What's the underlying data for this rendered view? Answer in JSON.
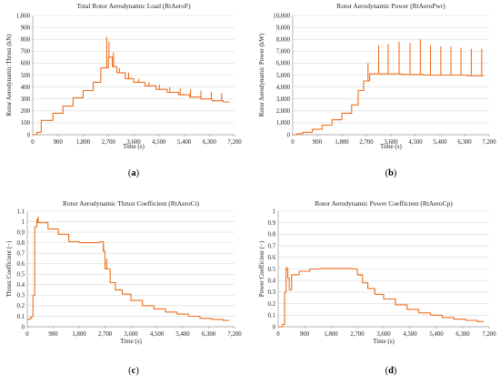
{
  "chart_data": [
    {
      "type": "line",
      "title": "Total Rotor Aerodynamic Load (RtAeroF)",
      "xlabel": "Time (s)",
      "ylabel": "Rotor Aerodynamic Thrust (kN)",
      "panel_label": "a",
      "xlim": [
        0,
        7200
      ],
      "ylim": [
        0,
        1000
      ],
      "xticks": [
        "0",
        "900",
        "1,800",
        "2,700",
        "3,600",
        "4,500",
        "5,400",
        "6,300",
        "7,200"
      ],
      "yticks": [
        "0",
        "100",
        "200",
        "300",
        "400",
        "500",
        "600",
        "700",
        "800",
        "900",
        "1,000"
      ],
      "grid": "horizontal",
      "color": "#ee6e1e",
      "steps": [
        [
          0,
          0
        ],
        [
          150,
          20
        ],
        [
          300,
          120
        ],
        [
          720,
          180
        ],
        [
          1080,
          240
        ],
        [
          1440,
          310
        ],
        [
          1800,
          370
        ],
        [
          2160,
          440
        ],
        [
          2430,
          560
        ],
        [
          2700,
          650
        ],
        [
          2840,
          570
        ],
        [
          3000,
          520
        ],
        [
          3300,
          470
        ],
        [
          3600,
          440
        ],
        [
          4000,
          410
        ],
        [
          4400,
          380
        ],
        [
          4800,
          355
        ],
        [
          5200,
          335
        ],
        [
          5600,
          315
        ],
        [
          6000,
          300
        ],
        [
          6400,
          285
        ],
        [
          6800,
          275
        ],
        [
          7000,
          270
        ]
      ],
      "spikes": [
        [
          2640,
          820
        ],
        [
          2720,
          780
        ],
        [
          2880,
          690
        ],
        [
          3090,
          560
        ],
        [
          3420,
          520
        ],
        [
          3780,
          470
        ],
        [
          4150,
          440
        ],
        [
          4520,
          420
        ],
        [
          4890,
          400
        ],
        [
          5260,
          390
        ],
        [
          5630,
          380
        ],
        [
          6000,
          370
        ],
        [
          6370,
          360
        ],
        [
          6740,
          350
        ]
      ]
    },
    {
      "type": "line",
      "title": "Rotor Aerodynamic Power (RtAeroPwr)",
      "xlabel": "Time (s)",
      "ylabel": "Rotor Aerodynamic Power (kW)",
      "panel_label": "b",
      "xlim": [
        0,
        7200
      ],
      "ylim": [
        0,
        10000
      ],
      "xticks": [
        "0",
        "900",
        "1,800",
        "2,700",
        "3,600",
        "4,500",
        "5,400",
        "6,300",
        "7,200"
      ],
      "yticks": [
        "0",
        "1,000",
        "2,000",
        "3,000",
        "4,000",
        "5,000",
        "6,000",
        "7,000",
        "8,000",
        "9,000",
        "10,000"
      ],
      "grid": "horizontal",
      "color": "#ee6e1e",
      "steps": [
        [
          0,
          0
        ],
        [
          150,
          80
        ],
        [
          360,
          200
        ],
        [
          720,
          450
        ],
        [
          1080,
          800
        ],
        [
          1440,
          1250
        ],
        [
          1800,
          1800
        ],
        [
          2160,
          2500
        ],
        [
          2400,
          3700
        ],
        [
          2600,
          4500
        ],
        [
          2820,
          5100
        ],
        [
          3200,
          5100
        ],
        [
          4000,
          5050
        ],
        [
          4800,
          5000
        ],
        [
          5600,
          5000
        ],
        [
          6400,
          4950
        ],
        [
          7000,
          4950
        ]
      ],
      "spikes": [
        [
          2760,
          6000
        ],
        [
          3150,
          7500
        ],
        [
          3500,
          7600
        ],
        [
          3900,
          7800
        ],
        [
          4300,
          7700
        ],
        [
          4680,
          8000
        ],
        [
          5050,
          7500
        ],
        [
          5430,
          7400
        ],
        [
          5800,
          7400
        ],
        [
          6170,
          7300
        ],
        [
          6550,
          7200
        ],
        [
          6930,
          7200
        ]
      ]
    },
    {
      "type": "line",
      "title": "Rotor Aerodynamic Thrust Coefficient (RtAeroCt)",
      "xlabel": "Time (s)",
      "ylabel": "Thrust Coefficient (−)",
      "panel_label": "c",
      "xlim": [
        0,
        7200
      ],
      "ylim": [
        0,
        1.1
      ],
      "xticks": [
        "0",
        "900",
        "1,800",
        "2,700",
        "3,600",
        "4,500",
        "5,400",
        "6,300",
        "7,200"
      ],
      "yticks": [
        "0",
        "0.1",
        "0.2",
        "0.3",
        "0.4",
        "0.5",
        "0.6",
        "0.7",
        "0.8",
        "0.9",
        "1",
        "1.1"
      ],
      "grid": "horizontal",
      "color": "#ee6e1e",
      "steps": [
        [
          0,
          0.07
        ],
        [
          80,
          0.08
        ],
        [
          150,
          0.1
        ],
        [
          200,
          0.3
        ],
        [
          260,
          0.95
        ],
        [
          330,
          1.02
        ],
        [
          360,
          0.99
        ],
        [
          720,
          0.93
        ],
        [
          1080,
          0.88
        ],
        [
          1440,
          0.81
        ],
        [
          1800,
          0.8
        ],
        [
          2340,
          0.8
        ],
        [
          2520,
          0.81
        ],
        [
          2640,
          0.72
        ],
        [
          2700,
          0.55
        ],
        [
          2880,
          0.42
        ],
        [
          3060,
          0.35
        ],
        [
          3300,
          0.31
        ],
        [
          3600,
          0.25
        ],
        [
          4000,
          0.2
        ],
        [
          4400,
          0.17
        ],
        [
          4800,
          0.14
        ],
        [
          5200,
          0.12
        ],
        [
          5600,
          0.1
        ],
        [
          6000,
          0.08
        ],
        [
          6400,
          0.07
        ],
        [
          6800,
          0.06
        ],
        [
          7000,
          0.055
        ]
      ],
      "spikes": [
        [
          380,
          1.05
        ],
        [
          2650,
          0.78
        ],
        [
          2760,
          0.65
        ]
      ]
    },
    {
      "type": "line",
      "title": "Rotor Aerodynamic Power Coefficient (RtAeroCp)",
      "xlabel": "Time (s)",
      "ylabel": "Power Coefficient (−)",
      "panel_label": "d",
      "xlim": [
        0,
        7200
      ],
      "ylim": [
        0,
        1.0
      ],
      "xticks": [
        "0",
        "900",
        "1,800",
        "2,700",
        "3,600",
        "4,500",
        "5,400",
        "6,300",
        "7,200"
      ],
      "yticks": [
        "0",
        "0.1",
        "0.2",
        "0.3",
        "0.4",
        "0.5",
        "0.6",
        "0.7",
        "0.8",
        "0.9",
        "1"
      ],
      "grid": "horizontal",
      "color": "#ee6e1e",
      "steps": [
        [
          0,
          0.0
        ],
        [
          150,
          0.02
        ],
        [
          220,
          0.3
        ],
        [
          270,
          0.5
        ],
        [
          330,
          0.42
        ],
        [
          380,
          0.32
        ],
        [
          460,
          0.45
        ],
        [
          720,
          0.48
        ],
        [
          1080,
          0.5
        ],
        [
          1440,
          0.505
        ],
        [
          1800,
          0.505
        ],
        [
          2340,
          0.505
        ],
        [
          2520,
          0.5
        ],
        [
          2700,
          0.45
        ],
        [
          2880,
          0.38
        ],
        [
          3060,
          0.33
        ],
        [
          3300,
          0.28
        ],
        [
          3600,
          0.24
        ],
        [
          4000,
          0.19
        ],
        [
          4400,
          0.15
        ],
        [
          4800,
          0.12
        ],
        [
          5200,
          0.1
        ],
        [
          5600,
          0.08
        ],
        [
          6000,
          0.065
        ],
        [
          6400,
          0.055
        ],
        [
          6800,
          0.045
        ],
        [
          7000,
          0.04
        ]
      ],
      "spikes": [
        [
          290,
          0.52
        ],
        [
          2700,
          0.5
        ],
        [
          2800,
          0.44
        ]
      ]
    }
  ]
}
